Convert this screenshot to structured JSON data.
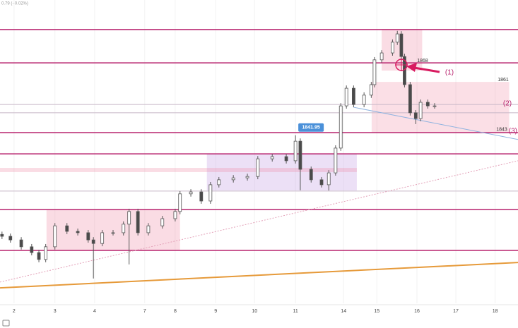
{
  "chart_data": {
    "type": "candlestick",
    "header": "0.79 (−0.02%)",
    "x": [
      -0.3,
      -0.09,
      0.18,
      0.44,
      0.62,
      0.79,
      1.02,
      1.32,
      1.59,
      1.85,
      1.98,
      2.2,
      2.47,
      2.73,
      2.87,
      3.09,
      3.35,
      3.7,
      4.02,
      4.14,
      4.41,
      4.67,
      4.9,
      5.11,
      5.47,
      5.82,
      6.08,
      6.44,
      6.79,
      7.02,
      7.14,
      7.41,
      7.67,
      7.85,
      8.02,
      8.15,
      8.29,
      8.47,
      8.73,
      8.91,
      8.99,
      9.17,
      9.44,
      9.56,
      9.66,
      9.74,
      9.88,
      10.02,
      10.14,
      10.32,
      10.49
    ],
    "open": [
      1806.0,
      1805.3,
      1804.0,
      1801.5,
      1799.4,
      1796.9,
      1801.5,
      1809.1,
      1807.1,
      1806.6,
      1804.0,
      1802.7,
      1806.6,
      1806.6,
      1809.7,
      1814.3,
      1806.6,
      1809.1,
      1811.7,
      1814.3,
      1820.7,
      1821.4,
      1818.1,
      1824.0,
      1825.8,
      1826.5,
      1827.0,
      1833.4,
      1834.2,
      1832.7,
      1839.8,
      1829.6,
      1825.8,
      1824.0,
      1828.3,
      1837.3,
      1852.6,
      1859.0,
      1853.1,
      1856.5,
      1860.3,
      1869.3,
      1871.8,
      1875.7,
      1878.7,
      1870.5,
      1860.3,
      1850.1,
      1848.0,
      1853.9,
      1852.6
    ],
    "high": [
      1807.0,
      1806.3,
      1805.0,
      1802.5,
      1800.4,
      1802.5,
      1810.1,
      1810.1,
      1808.1,
      1807.6,
      1805.0,
      1807.6,
      1807.6,
      1810.7,
      1815.3,
      1815.3,
      1810.1,
      1812.7,
      1815.3,
      1821.7,
      1822.4,
      1822.4,
      1825.0,
      1826.8,
      1827.5,
      1828.0,
      1834.4,
      1835.2,
      1835.2,
      1841.95,
      1840.8,
      1830.6,
      1826.8,
      1829.3,
      1838.3,
      1853.6,
      1860.0,
      1860.0,
      1857.5,
      1861.3,
      1870.3,
      1872.8,
      1876.7,
      1879.8,
      1879.7,
      1871.5,
      1861.3,
      1851.1,
      1854.9,
      1854.9,
      1853.6
    ],
    "low": [
      1804.3,
      1803.0,
      1800.5,
      1798.4,
      1795.9,
      1795.9,
      1800.5,
      1806.1,
      1805.6,
      1803.0,
      1790.0,
      1801.7,
      1805.6,
      1805.6,
      1795.1,
      1805.6,
      1805.6,
      1808.1,
      1810.7,
      1813.3,
      1819.7,
      1817.1,
      1817.1,
      1823.0,
      1824.8,
      1825.5,
      1826.0,
      1832.4,
      1831.7,
      1831.7,
      1822.0,
      1824.8,
      1823.0,
      1821.9,
      1827.3,
      1836.3,
      1851.6,
      1852.1,
      1852.1,
      1855.5,
      1859.3,
      1868.3,
      1870.8,
      1874.7,
      1869.5,
      1859.3,
      1849.1,
      1846.0,
      1847.0,
      1851.6,
      1851.6
    ],
    "close": [
      1805.3,
      1804.0,
      1801.5,
      1799.4,
      1796.9,
      1801.5,
      1809.1,
      1807.1,
      1806.6,
      1804.0,
      1802.7,
      1806.6,
      1806.6,
      1809.7,
      1814.3,
      1806.6,
      1809.1,
      1811.7,
      1814.3,
      1820.7,
      1821.4,
      1818.1,
      1824.0,
      1825.8,
      1826.5,
      1827.0,
      1833.4,
      1834.2,
      1832.7,
      1839.8,
      1829.6,
      1825.8,
      1824.0,
      1828.3,
      1837.3,
      1852.6,
      1859.0,
      1853.1,
      1856.5,
      1860.3,
      1869.3,
      1871.8,
      1875.7,
      1878.7,
      1870.5,
      1860.3,
      1850.1,
      1848.0,
      1853.9,
      1852.6,
      1852.6
    ],
    "up_color": "#ffffff",
    "down_color": "#4a4a4a",
    "wick_color": "#555555",
    "xlim": [
      -0.35,
      12.57
    ],
    "ylim": [
      1781,
      1891
    ],
    "xticks": [
      {
        "value": 0,
        "label": "2"
      },
      {
        "value": 1.02,
        "label": "3"
      },
      {
        "value": 2.01,
        "label": "4"
      },
      {
        "value": 3.26,
        "label": "7"
      },
      {
        "value": 4.02,
        "label": "8"
      },
      {
        "value": 5.03,
        "label": "9"
      },
      {
        "value": 6.0,
        "label": "10"
      },
      {
        "value": 7.02,
        "label": "11"
      },
      {
        "value": 8.22,
        "label": "14"
      },
      {
        "value": 9.05,
        "label": "15"
      },
      {
        "value": 10.05,
        "label": "16"
      },
      {
        "value": 11.02,
        "label": "17"
      },
      {
        "value": 12.0,
        "label": "18"
      }
    ],
    "levels": {
      "values": [
        1880.3,
        1868.2,
        1842.9,
        1835.2,
        1815.0,
        1800.2
      ],
      "color": "#b8236e"
    },
    "guides": {
      "values": [
        1853.1,
        1850.1,
        1821.7
      ],
      "color": "#c8b8c8"
    },
    "zones": [
      {
        "x": [
          0.81,
          4.14
        ],
        "y": [
          1815.0,
          1800.2
        ],
        "color": "rgba(240,140,165,0.3)"
      },
      {
        "x": [
          4.81,
          8.55
        ],
        "y": [
          1835.2,
          1821.9
        ],
        "color": "rgba(200,165,230,0.35)"
      },
      {
        "x": [
          8.92,
          12.35
        ],
        "y": [
          1861.3,
          1842.9
        ],
        "color": "rgba(240,140,165,0.28)"
      },
      {
        "x": [
          9.17,
          10.18
        ],
        "y": [
          1880.3,
          1865.4
        ],
        "color": "rgba(240,140,165,0.3)"
      },
      {
        "x": [
          -0.35,
          8.55
        ],
        "y": [
          1830.1,
          1828.6
        ],
        "color": "rgba(240,140,165,0.3)"
      }
    ],
    "trendlines": [
      {
        "x": [
          -0.35,
          12.57
        ],
        "y": [
          1786.6,
          1795.8
        ],
        "color": "#e69a3a",
        "width": 2,
        "dash": false
      },
      {
        "x": [
          8.47,
          12.57
        ],
        "y": [
          1852.1,
          1840.4
        ],
        "color": "#8fb3e0",
        "width": 1,
        "dash": false
      },
      {
        "x": [
          -0.35,
          12.57
        ],
        "y": [
          1788.7,
          1832.7
        ],
        "color": "#e3a0b8",
        "width": 1,
        "dash": true
      }
    ],
    "price_labels": [
      1868,
      1861,
      1843
    ],
    "annotations": [
      "(1)",
      "(2)",
      "(3)"
    ],
    "annotation_color": "#b8236e"
  }
}
